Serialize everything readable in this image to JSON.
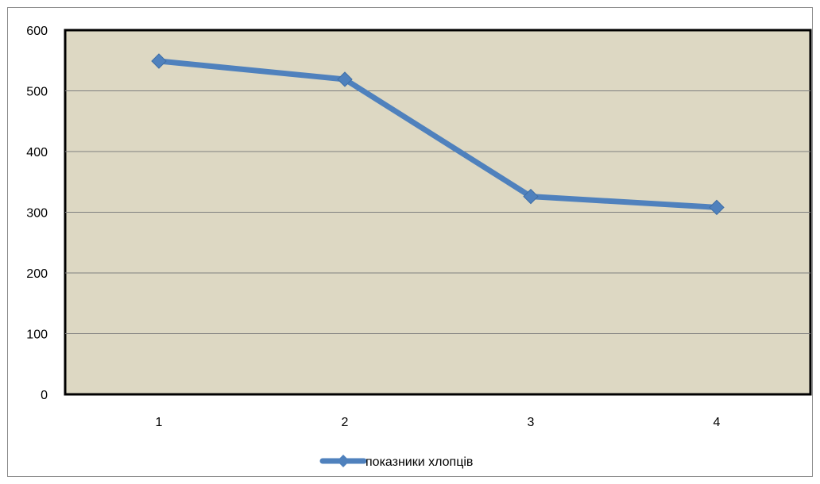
{
  "colors": {
    "plot_background": "#ddd8c3",
    "plot_border": "#000000",
    "gridline": "#7f7f7f",
    "series_line": "#4f81bd"
  },
  "chart_data": {
    "type": "line",
    "title": "",
    "xlabel": "",
    "ylabel": "",
    "categories": [
      "1",
      "2",
      "3",
      "4"
    ],
    "ylim": [
      0,
      600
    ],
    "yticks": [
      0,
      100,
      200,
      300,
      400,
      500,
      600
    ],
    "grid": true,
    "marker": "diamond",
    "legend_position": "bottom",
    "series": [
      {
        "name": "показники хлопців",
        "values": [
          549,
          519,
          326,
          308
        ]
      }
    ]
  }
}
